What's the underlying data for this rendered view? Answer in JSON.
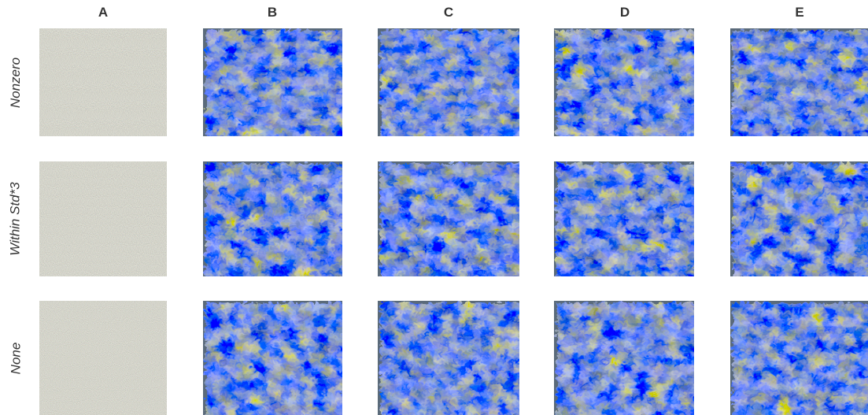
{
  "columns": [
    "A",
    "B",
    "C",
    "D",
    "E"
  ],
  "rows": [
    "Nonzero",
    "Within Std*3",
    "None"
  ],
  "tiles": [
    {
      "row": 0,
      "col": 0,
      "texture": "random-noise"
    },
    {
      "row": 0,
      "col": 1,
      "texture": "blue-yellow-swirl"
    },
    {
      "row": 0,
      "col": 2,
      "texture": "blue-yellow-swirl"
    },
    {
      "row": 0,
      "col": 3,
      "texture": "blue-yellow-swirl"
    },
    {
      "row": 0,
      "col": 4,
      "texture": "blue-yellow-swirl"
    },
    {
      "row": 1,
      "col": 0,
      "texture": "random-noise"
    },
    {
      "row": 1,
      "col": 1,
      "texture": "blue-yellow-swirl"
    },
    {
      "row": 1,
      "col": 2,
      "texture": "blue-yellow-swirl"
    },
    {
      "row": 1,
      "col": 3,
      "texture": "blue-yellow-swirl"
    },
    {
      "row": 1,
      "col": 4,
      "texture": "blue-yellow-swirl"
    },
    {
      "row": 2,
      "col": 0,
      "texture": "random-noise"
    },
    {
      "row": 2,
      "col": 1,
      "texture": "blue-yellow-swirl"
    },
    {
      "row": 2,
      "col": 2,
      "texture": "blue-yellow-swirl"
    },
    {
      "row": 2,
      "col": 3,
      "texture": "blue-yellow-swirl"
    },
    {
      "row": 2,
      "col": 4,
      "texture": "blue-yellow-swirl"
    }
  ],
  "colors": {
    "noise_base": "#8a8a78",
    "swirl_base": "#5a6a7a",
    "swirl_blue": "#2f4fbf",
    "swirl_yellow": "#9a9650",
    "swirl_dark": "#1c2030",
    "label_text": "#333333"
  }
}
